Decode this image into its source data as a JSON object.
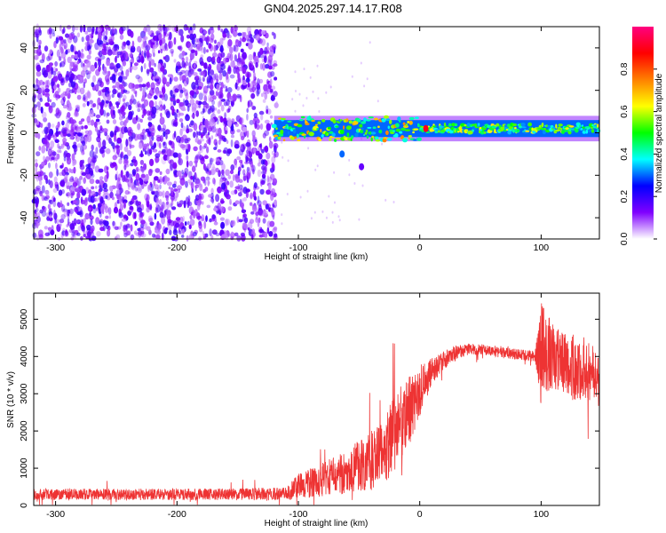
{
  "title": "GN04.2025.297.14.17.R08",
  "chart_data": [
    {
      "type": "heatmap",
      "xlabel": "Height of straight line (km)",
      "ylabel": "Frequency (Hz)",
      "xlim": [
        -318,
        148
      ],
      "ylim": [
        -50,
        50
      ],
      "xticks": [
        -300,
        -200,
        -100,
        0,
        100
      ],
      "yticks": [
        -40,
        -20,
        0,
        20,
        40
      ],
      "colorbar": {
        "label": "Normalized spectral amplitude",
        "range": [
          0,
          1
        ],
        "ticks": [
          0.0,
          0.2,
          0.4,
          0.6,
          0.8
        ],
        "colormap": [
          "#ffffff",
          "#8000ff",
          "#0000ff",
          "#00ffff",
          "#00ff00",
          "#ffff00",
          "#ff8000",
          "#ff0000",
          "#ff0080"
        ]
      },
      "regions": [
        {
          "x": [
            -318,
            -118
          ],
          "freq": [
            -50,
            50
          ],
          "amplitude": [
            0.05,
            0.2
          ],
          "pattern": "broadband noise"
        },
        {
          "x": [
            -120,
            148
          ],
          "freq": [
            -2,
            6
          ],
          "amplitude": [
            0.3,
            0.95
          ],
          "pattern": "narrow band near 0 Hz"
        }
      ],
      "features": [
        {
          "x": -64,
          "freq": -10,
          "amplitude": 0.3
        },
        {
          "x": -48,
          "freq": -16,
          "amplitude": 0.15
        },
        {
          "x": 5,
          "freq": 2,
          "amplitude": 0.9
        }
      ]
    },
    {
      "type": "line",
      "xlabel": "Height of straight line (km)",
      "ylabel": "SNR (10 * v/v)",
      "xlim": [
        -318,
        148
      ],
      "ylim": [
        0,
        5700
      ],
      "xticks": [
        -300,
        -200,
        -100,
        0,
        100
      ],
      "yticks": [
        0,
        1000,
        2000,
        3000,
        4000,
        5000
      ],
      "color": "#ee3333",
      "series": [
        {
          "x": [
            -318,
            -250,
            -200,
            -150,
            -110,
            -100,
            -80,
            -60,
            -40,
            -25,
            -10,
            0,
            10,
            20,
            30,
            40,
            60,
            80,
            95,
            100,
            110,
            120,
            130,
            140,
            148
          ],
          "center": [
            300,
            300,
            300,
            300,
            320,
            500,
            700,
            900,
            1200,
            1700,
            2500,
            3100,
            3600,
            3900,
            4100,
            4200,
            4150,
            4050,
            4000,
            4100,
            4000,
            3800,
            3700,
            3600,
            3500
          ],
          "spread": [
            150,
            150,
            150,
            160,
            180,
            350,
            450,
            600,
            800,
            1000,
            1000,
            700,
            350,
            250,
            200,
            150,
            150,
            150,
            150,
            1400,
            900,
            800,
            1000,
            800,
            600
          ]
        }
      ]
    }
  ]
}
